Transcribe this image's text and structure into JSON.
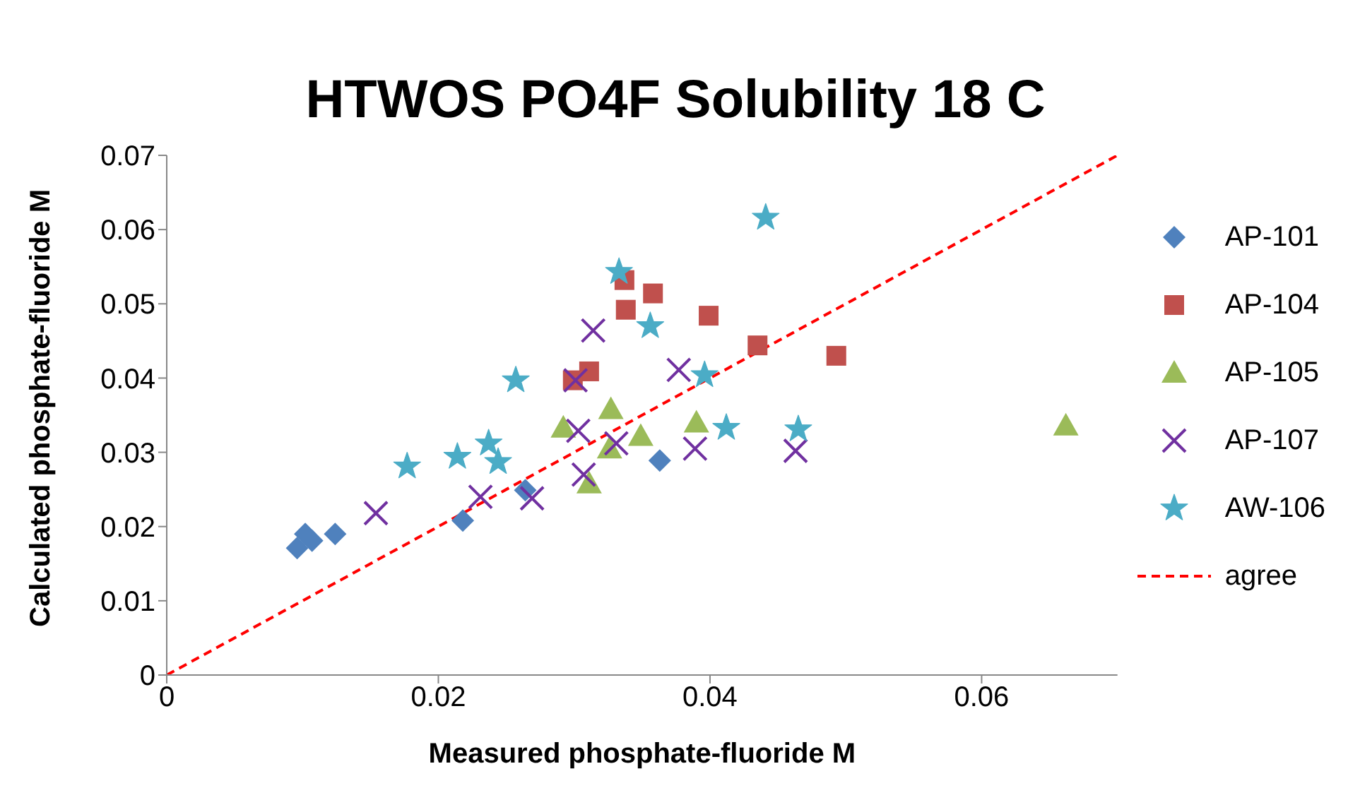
{
  "chart_data": {
    "type": "scatter",
    "title": "HTWOS PO4F Solubility 18 C",
    "xlabel": "Measured phosphate-fluoride  M",
    "ylabel": "Calculated phosphate-fluoride  M",
    "xlim": [
      0,
      0.07
    ],
    "xticks": [
      0,
      0.02,
      0.04,
      0.06
    ],
    "ylim": [
      0,
      0.07
    ],
    "yticks": [
      0,
      0.01,
      0.02,
      0.03,
      0.04,
      0.05,
      0.06,
      0.07
    ],
    "grid": false,
    "legend": "right",
    "series": [
      {
        "name": "AP-101",
        "color": "#4f81bd",
        "marker": "diamond",
        "x": [
          0.0096,
          0.0102,
          0.0107,
          0.0124,
          0.0218,
          0.0264,
          0.0363
        ],
        "values": [
          0.0171,
          0.019,
          0.0181,
          0.019,
          0.0208,
          0.0249,
          0.0289
        ]
      },
      {
        "name": "AP-104",
        "color": "#c0504d",
        "marker": "square",
        "x": [
          0.0337,
          0.0358,
          0.0338,
          0.0399,
          0.0435,
          0.0493,
          0.0311,
          0.0299
        ],
        "values": [
          0.0532,
          0.0514,
          0.0492,
          0.0484,
          0.0444,
          0.043,
          0.0409,
          0.0397
        ]
      },
      {
        "name": "AP-105",
        "color": "#9bbb59",
        "marker": "triangle",
        "x": [
          0.0327,
          0.0292,
          0.0326,
          0.0349,
          0.039,
          0.0311,
          0.0662
        ],
        "values": [
          0.0358,
          0.0333,
          0.0305,
          0.0322,
          0.034,
          0.0258,
          0.0336
        ]
      },
      {
        "name": "AP-107",
        "color": "#7030a0",
        "marker": "cross",
        "x": [
          0.0154,
          0.0231,
          0.0269,
          0.0314,
          0.0301,
          0.0377,
          0.0303,
          0.0331,
          0.0389,
          0.0463,
          0.0307
        ],
        "values": [
          0.0218,
          0.024,
          0.0238,
          0.0464,
          0.0397,
          0.0411,
          0.0329,
          0.0312,
          0.0305,
          0.0302,
          0.027
        ]
      },
      {
        "name": "AW-106",
        "color": "#4bacc6",
        "marker": "star",
        "x": [
          0.0257,
          0.0177,
          0.0214,
          0.0237,
          0.0244,
          0.0333,
          0.0356,
          0.0396,
          0.0441,
          0.0412,
          0.0465
        ],
        "values": [
          0.0397,
          0.0281,
          0.0294,
          0.0312,
          0.0287,
          0.0543,
          0.047,
          0.0404,
          0.0616,
          0.0333,
          0.0331
        ]
      },
      {
        "name": "agree",
        "type": "line",
        "color": "#ff0000",
        "line_style": "dashed",
        "marker": "none",
        "x": [
          0,
          0.07
        ],
        "values": [
          0,
          0.07
        ]
      }
    ]
  }
}
